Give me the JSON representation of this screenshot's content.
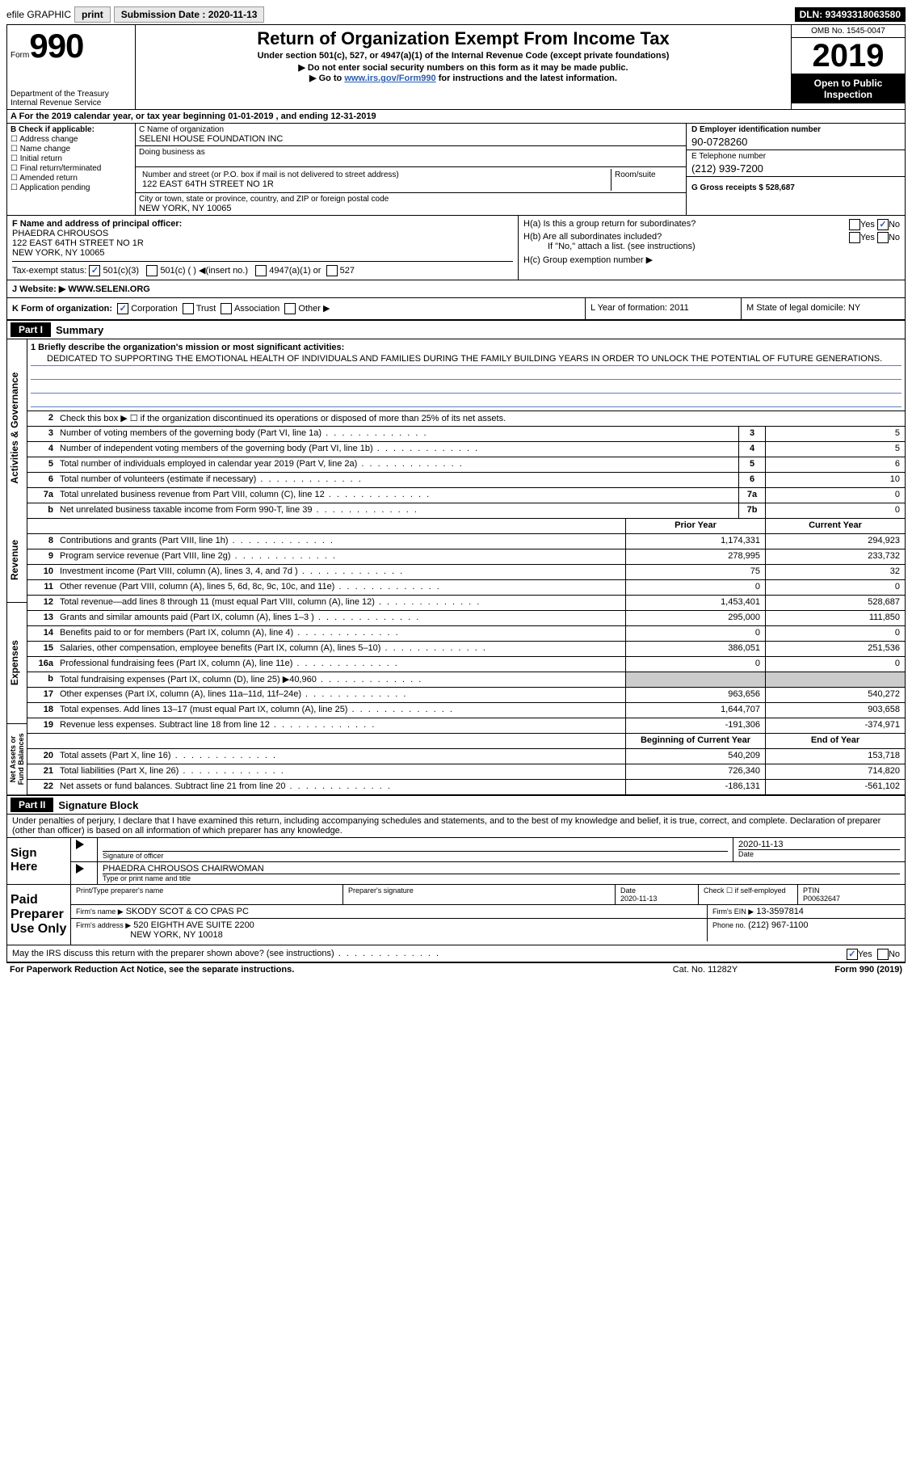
{
  "topbar": {
    "efile": "efile GRAPHIC",
    "print": "print",
    "subdate_label": "Submission Date : 2020-11-13",
    "dln": "DLN: 93493318063580"
  },
  "header": {
    "form_prefix": "Form",
    "form_num": "990",
    "dept": "Department of the Treasury\nInternal Revenue Service",
    "title": "Return of Organization Exempt From Income Tax",
    "sub1": "Under section 501(c), 527, or 4947(a)(1) of the Internal Revenue Code (except private foundations)",
    "sub2": "▶ Do not enter social security numbers on this form as it may be made public.",
    "sub3_pre": "▶ Go to ",
    "sub3_link": "www.irs.gov/Form990",
    "sub3_post": " for instructions and the latest information.",
    "omb": "OMB No. 1545-0047",
    "year": "2019",
    "inspect": "Open to Public Inspection"
  },
  "row_a": "A For the 2019 calendar year, or tax year beginning 01-01-2019    , and ending 12-31-2019",
  "col_b": {
    "hdr": "B Check if applicable:",
    "opts": [
      "Address change",
      "Name change",
      "Initial return",
      "Final return/terminated",
      "Amended return",
      "Application pending"
    ]
  },
  "col_c": {
    "name_lbl": "C Name of organization",
    "name": "SELENI HOUSE FOUNDATION INC",
    "dba_lbl": "Doing business as",
    "addr_lbl": "Number and street (or P.O. box if mail is not delivered to street address)",
    "room_lbl": "Room/suite",
    "addr": "122 EAST 64TH STREET NO 1R",
    "city_lbl": "City or town, state or province, country, and ZIP or foreign postal code",
    "city": "NEW YORK, NY  10065"
  },
  "col_d": {
    "ein_lbl": "D Employer identification number",
    "ein": "90-0728260",
    "tel_lbl": "E Telephone number",
    "tel": "(212) 939-7200",
    "gross_lbl": "G Gross receipts $ 528,687"
  },
  "section_f": {
    "lbl": "F Name and address of principal officer:",
    "name": "PHAEDRA CHROUSOS",
    "addr1": "122 EAST 64TH STREET NO 1R",
    "addr2": "NEW YORK, NY 10065",
    "tax_lbl": "Tax-exempt status:",
    "t1": "501(c)(3)",
    "t2": "501(c) (  ) ◀(insert no.)",
    "t3": "4947(a)(1) or",
    "t4": "527"
  },
  "section_h": {
    "ha": "H(a)  Is this a group return for subordinates?",
    "hb": "H(b)  Are all subordinates included?",
    "hb_note": "If \"No,\" attach a list. (see instructions)",
    "hc": "H(c)  Group exemption number ▶",
    "yes": "Yes",
    "no": "No"
  },
  "row_j": {
    "lbl": "J   Website: ▶",
    "val": "WWW.SELENI.ORG"
  },
  "row_k": {
    "k": "K Form of organization:",
    "corp": "Corporation",
    "trust": "Trust",
    "assoc": "Association",
    "other": "Other ▶",
    "l": "L Year of formation: 2011",
    "m": "M State of legal domicile: NY"
  },
  "part1": {
    "hdr": "Part I",
    "title": "Summary",
    "q1": "1   Briefly describe the organization's mission or most significant activities:",
    "mission": "DEDICATED TO SUPPORTING THE EMOTIONAL HEALTH OF INDIVIDUALS AND FAMILIES DURING THE FAMILY BUILDING YEARS IN ORDER TO UNLOCK THE POTENTIAL OF FUTURE GENERATIONS.",
    "q2": "Check this box ▶ ☐  if the organization discontinued its operations or disposed of more than 25% of its net assets."
  },
  "vlabels": {
    "ag": "Activities & Governance",
    "rev": "Revenue",
    "exp": "Expenses",
    "na": "Net Assets or Fund Balances"
  },
  "governance_lines": [
    {
      "n": "3",
      "d": "Number of voting members of the governing body (Part VI, line 1a)",
      "b": "3",
      "v": "5"
    },
    {
      "n": "4",
      "d": "Number of independent voting members of the governing body (Part VI, line 1b)",
      "b": "4",
      "v": "5"
    },
    {
      "n": "5",
      "d": "Total number of individuals employed in calendar year 2019 (Part V, line 2a)",
      "b": "5",
      "v": "6"
    },
    {
      "n": "6",
      "d": "Total number of volunteers (estimate if necessary)",
      "b": "6",
      "v": "10"
    },
    {
      "n": "7a",
      "d": "Total unrelated business revenue from Part VIII, column (C), line 12",
      "b": "7a",
      "v": "0"
    },
    {
      "n": "b",
      "d": "Net unrelated business taxable income from Form 990-T, line 39",
      "b": "7b",
      "v": "0"
    }
  ],
  "col_headers": {
    "py": "Prior Year",
    "cy": "Current Year",
    "bcy": "Beginning of Current Year",
    "eoy": "End of Year"
  },
  "revenue_lines": [
    {
      "n": "8",
      "d": "Contributions and grants (Part VIII, line 1h)",
      "py": "1,174,331",
      "cy": "294,923"
    },
    {
      "n": "9",
      "d": "Program service revenue (Part VIII, line 2g)",
      "py": "278,995",
      "cy": "233,732"
    },
    {
      "n": "10",
      "d": "Investment income (Part VIII, column (A), lines 3, 4, and 7d )",
      "py": "75",
      "cy": "32"
    },
    {
      "n": "11",
      "d": "Other revenue (Part VIII, column (A), lines 5, 6d, 8c, 9c, 10c, and 11e)",
      "py": "0",
      "cy": "0"
    },
    {
      "n": "12",
      "d": "Total revenue—add lines 8 through 11 (must equal Part VIII, column (A), line 12)",
      "py": "1,453,401",
      "cy": "528,687"
    }
  ],
  "expense_lines": [
    {
      "n": "13",
      "d": "Grants and similar amounts paid (Part IX, column (A), lines 1–3 )",
      "py": "295,000",
      "cy": "111,850"
    },
    {
      "n": "14",
      "d": "Benefits paid to or for members (Part IX, column (A), line 4)",
      "py": "0",
      "cy": "0"
    },
    {
      "n": "15",
      "d": "Salaries, other compensation, employee benefits (Part IX, column (A), lines 5–10)",
      "py": "386,051",
      "cy": "251,536"
    },
    {
      "n": "16a",
      "d": "Professional fundraising fees (Part IX, column (A), line 11e)",
      "py": "0",
      "cy": "0"
    },
    {
      "n": "b",
      "d": "Total fundraising expenses (Part IX, column (D), line 25) ▶40,960",
      "py": "",
      "cy": "",
      "shade": true
    },
    {
      "n": "17",
      "d": "Other expenses (Part IX, column (A), lines 11a–11d, 11f–24e)",
      "py": "963,656",
      "cy": "540,272"
    },
    {
      "n": "18",
      "d": "Total expenses. Add lines 13–17 (must equal Part IX, column (A), line 25)",
      "py": "1,644,707",
      "cy": "903,658"
    },
    {
      "n": "19",
      "d": "Revenue less expenses. Subtract line 18 from line 12",
      "py": "-191,306",
      "cy": "-374,971"
    }
  ],
  "netassets_lines": [
    {
      "n": "20",
      "d": "Total assets (Part X, line 16)",
      "py": "540,209",
      "cy": "153,718"
    },
    {
      "n": "21",
      "d": "Total liabilities (Part X, line 26)",
      "py": "726,340",
      "cy": "714,820"
    },
    {
      "n": "22",
      "d": "Net assets or fund balances. Subtract line 21 from line 20",
      "py": "-186,131",
      "cy": "-561,102"
    }
  ],
  "part2": {
    "hdr": "Part II",
    "title": "Signature Block",
    "decl": "Under penalties of perjury, I declare that I have examined this return, including accompanying schedules and statements, and to the best of my knowledge and belief, it is true, correct, and complete. Declaration of preparer (other than officer) is based on all information of which preparer has any knowledge."
  },
  "sign": {
    "here": "Sign Here",
    "sig_lbl": "Signature of officer",
    "date_lbl": "Date",
    "date": "2020-11-13",
    "name": "PHAEDRA CHROUSOS  CHAIRWOMAN",
    "name_lbl": "Type or print name and title"
  },
  "preparer": {
    "hdr": "Paid Preparer Use Only",
    "p1": "Print/Type preparer's name",
    "p2": "Preparer's signature",
    "p3_lbl": "Date",
    "p3": "2020-11-13",
    "p4": "Check ☐ if self-employed",
    "p5_lbl": "PTIN",
    "p5": "P00632647",
    "firm_lbl": "Firm's name    ▶",
    "firm": "SKODY SCOT & CO CPAS PC",
    "ein_lbl": "Firm's EIN ▶",
    "ein": "13-3597814",
    "addr_lbl": "Firm's address ▶",
    "addr1": "520 EIGHTH AVE SUITE 2200",
    "addr2": "NEW YORK, NY  10018",
    "ph_lbl": "Phone no.",
    "ph": "(212) 967-1100",
    "discuss": "May the IRS discuss this return with the preparer shown above? (see instructions)"
  },
  "footer": {
    "l": "For Paperwork Reduction Act Notice, see the separate instructions.",
    "m": "Cat. No. 11282Y",
    "r": "Form 990 (2019)"
  }
}
